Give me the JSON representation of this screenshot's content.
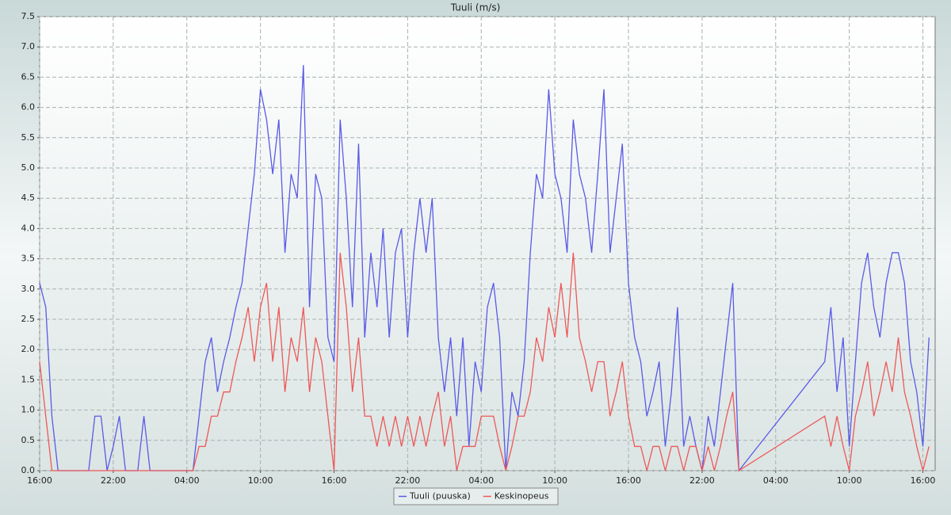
{
  "chart_data": {
    "type": "line",
    "title": "Tuuli (m/s)",
    "x": [
      0,
      0.5,
      1,
      1.5,
      2,
      2.5,
      3,
      3.5,
      4,
      4.5,
      5,
      5.5,
      6,
      6.5,
      7,
      7.5,
      8,
      8.5,
      9,
      9.5,
      10,
      10.5,
      11,
      11.5,
      12,
      12.5,
      13,
      13.5,
      14,
      14.5,
      15,
      15.5,
      16,
      16.5,
      17,
      17.5,
      18,
      18.5,
      19,
      19.5,
      20,
      20.5,
      21,
      21.5,
      22,
      22.5,
      23,
      23.5,
      24,
      24.5,
      25,
      25.5,
      26,
      26.5,
      27,
      27.5,
      28,
      28.5,
      29,
      29.5,
      30,
      30.5,
      31,
      31.5,
      32,
      32.5,
      33,
      33.5,
      34,
      34.5,
      35,
      35.5,
      36,
      36.5,
      37,
      37.5,
      38,
      38.5,
      39,
      39.5,
      40,
      40.5,
      41,
      41.5,
      42,
      42.5,
      43,
      43.5,
      44,
      44.5,
      45,
      45.5,
      46,
      46.5,
      47,
      47.5,
      48,
      48.5,
      49,
      49.5,
      50,
      50.5,
      51,
      51.5,
      52,
      52.5,
      53,
      53.5,
      54,
      54.5,
      55,
      55.5,
      56,
      56.5,
      57,
      64,
      64.5,
      65,
      65.5,
      66,
      66.5,
      67,
      67.5,
      68,
      68.5,
      69,
      69.5,
      70,
      70.5,
      71,
      71.5,
      72,
      72.5
    ],
    "series": [
      {
        "name": "Tuuli (puuska)",
        "color": "#5a5ae6",
        "values": [
          3.1,
          2.7,
          0.9,
          0,
          0,
          0,
          0,
          0,
          0,
          0.9,
          0.9,
          0,
          0.4,
          0.9,
          0,
          0,
          0,
          0.9,
          0,
          0,
          0,
          0,
          0,
          0,
          0,
          0,
          0.9,
          1.8,
          2.2,
          1.3,
          1.8,
          2.2,
          2.7,
          3.1,
          4.0,
          4.9,
          6.3,
          5.8,
          4.9,
          5.8,
          3.6,
          4.9,
          4.5,
          6.7,
          2.7,
          4.9,
          4.5,
          2.2,
          1.8,
          5.8,
          4.5,
          2.7,
          5.4,
          2.2,
          3.6,
          2.7,
          4.0,
          2.2,
          3.6,
          4.0,
          2.2,
          3.6,
          4.5,
          3.6,
          4.5,
          2.2,
          1.3,
          2.2,
          0.9,
          2.2,
          0.4,
          1.8,
          1.3,
          2.7,
          3.1,
          2.2,
          0,
          1.3,
          0.9,
          1.8,
          3.6,
          4.9,
          4.5,
          6.3,
          4.9,
          4.5,
          3.6,
          5.8,
          4.9,
          4.5,
          3.6,
          4.9,
          6.3,
          3.6,
          4.5,
          5.4,
          3.1,
          2.2,
          1.8,
          0.9,
          1.3,
          1.8,
          0.4,
          1.3,
          2.7,
          0.4,
          0.9,
          0.4,
          0,
          0.9,
          0.4,
          1.3,
          2.2,
          3.1,
          0,
          1.8,
          2.7,
          1.3,
          2.2,
          0.4,
          1.8,
          3.1,
          3.6,
          2.7,
          2.2,
          3.1,
          3.6,
          3.6,
          3.1,
          1.8,
          1.3,
          0.4,
          2.2
        ]
      },
      {
        "name": "Keskinopeus",
        "color": "#ee5858",
        "values": [
          1.8,
          0.9,
          0,
          0,
          0,
          0,
          0,
          0,
          0,
          0,
          0,
          0,
          0,
          0,
          0,
          0,
          0,
          0,
          0,
          0,
          0,
          0,
          0,
          0,
          0,
          0,
          0.4,
          0.4,
          0.9,
          0.9,
          1.3,
          1.3,
          1.8,
          2.2,
          2.7,
          1.8,
          2.7,
          3.1,
          1.8,
          2.7,
          1.3,
          2.2,
          1.8,
          2.7,
          1.3,
          2.2,
          1.8,
          0.9,
          0,
          3.6,
          2.7,
          1.3,
          2.2,
          0.9,
          0.9,
          0.4,
          0.9,
          0.4,
          0.9,
          0.4,
          0.9,
          0.4,
          0.9,
          0.4,
          0.9,
          1.3,
          0.4,
          0.9,
          0,
          0.4,
          0.4,
          0.4,
          0.9,
          0.9,
          0.9,
          0.4,
          0,
          0.4,
          0.9,
          0.9,
          1.3,
          2.2,
          1.8,
          2.7,
          2.2,
          3.1,
          2.2,
          3.6,
          2.2,
          1.8,
          1.3,
          1.8,
          1.8,
          0.9,
          1.3,
          1.8,
          0.9,
          0.4,
          0.4,
          0,
          0.4,
          0.4,
          0,
          0.4,
          0.4,
          0,
          0.4,
          0.4,
          0,
          0.4,
          0,
          0.4,
          0.9,
          1.3,
          0,
          0.9,
          0.4,
          0.9,
          0.4,
          0,
          0.9,
          1.3,
          1.8,
          0.9,
          1.3,
          1.8,
          1.3,
          2.2,
          1.3,
          0.9,
          0.4,
          0,
          0.4
        ]
      }
    ],
    "xlim": [
      0,
      73
    ],
    "xticks": [
      {
        "value": 0,
        "label": "16:00"
      },
      {
        "value": 6,
        "label": "22:00"
      },
      {
        "value": 12,
        "label": "04:00"
      },
      {
        "value": 18,
        "label": "10:00"
      },
      {
        "value": 24,
        "label": "16:00"
      },
      {
        "value": 30,
        "label": "22:00"
      },
      {
        "value": 36,
        "label": "04:00"
      },
      {
        "value": 42,
        "label": "10:00"
      },
      {
        "value": 48,
        "label": "16:00"
      },
      {
        "value": 54,
        "label": "22:00"
      },
      {
        "value": 60,
        "label": "04:00"
      },
      {
        "value": 66,
        "label": "10:00"
      },
      {
        "value": 72,
        "label": "16:00"
      }
    ],
    "ylim": [
      0,
      7.5
    ],
    "yticks": [
      {
        "value": 0,
        "label": "0.0"
      },
      {
        "value": 0.5,
        "label": "0.5"
      },
      {
        "value": 1,
        "label": "1.0"
      },
      {
        "value": 1.5,
        "label": "1.5"
      },
      {
        "value": 2,
        "label": "2.0"
      },
      {
        "value": 2.5,
        "label": "2.5"
      },
      {
        "value": 3,
        "label": "3.0"
      },
      {
        "value": 3.5,
        "label": "3.5"
      },
      {
        "value": 4,
        "label": "4.0"
      },
      {
        "value": 4.5,
        "label": "4.5"
      },
      {
        "value": 5,
        "label": "5.0"
      },
      {
        "value": 5.5,
        "label": "5.5"
      },
      {
        "value": 6,
        "label": "6.0"
      },
      {
        "value": 6.5,
        "label": "6.5"
      },
      {
        "value": 7,
        "label": "7.0"
      },
      {
        "value": 7.5,
        "label": "7.5"
      }
    ],
    "grid": true,
    "legend": "bottom"
  }
}
